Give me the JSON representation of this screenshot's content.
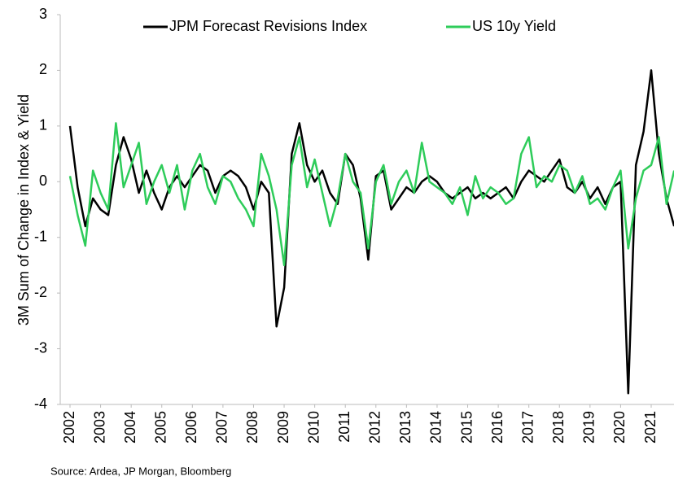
{
  "chart_data": {
    "type": "line",
    "ylabel": "3M Sum of Change in Index & Yield",
    "source": "Source: Ardea, JP Morgan, Bloomberg",
    "legend": "top",
    "x": [
      2002.0,
      2002.25,
      2002.5,
      2002.75,
      2003.0,
      2003.25,
      2003.5,
      2003.75,
      2004.0,
      2004.25,
      2004.5,
      2004.75,
      2005.0,
      2005.25,
      2005.5,
      2005.75,
      2006.0,
      2006.25,
      2006.5,
      2006.75,
      2007.0,
      2007.25,
      2007.5,
      2007.75,
      2008.0,
      2008.25,
      2008.5,
      2008.75,
      2009.0,
      2009.25,
      2009.5,
      2009.75,
      2010.0,
      2010.25,
      2010.5,
      2010.75,
      2011.0,
      2011.25,
      2011.5,
      2011.75,
      2012.0,
      2012.25,
      2012.5,
      2012.75,
      2013.0,
      2013.25,
      2013.5,
      2013.75,
      2014.0,
      2014.25,
      2014.5,
      2014.75,
      2015.0,
      2015.25,
      2015.5,
      2015.75,
      2016.0,
      2016.25,
      2016.5,
      2016.75,
      2017.0,
      2017.25,
      2017.5,
      2017.75,
      2018.0,
      2018.25,
      2018.5,
      2018.75,
      2019.0,
      2019.25,
      2019.5,
      2019.75,
      2020.0,
      2020.25,
      2020.5,
      2020.75,
      2021.0,
      2021.25,
      2021.5,
      2021.75
    ],
    "series": [
      {
        "name": "JPM Forecast Revisions Index",
        "color": "#000000",
        "values": [
          1.0,
          -0.1,
          -0.8,
          -0.3,
          -0.5,
          -0.6,
          0.3,
          0.8,
          0.4,
          -0.2,
          0.2,
          -0.2,
          -0.5,
          -0.1,
          0.1,
          -0.1,
          0.1,
          0.3,
          0.2,
          -0.2,
          0.1,
          0.2,
          0.1,
          -0.1,
          -0.5,
          0.0,
          -0.2,
          -2.6,
          -1.9,
          0.5,
          1.05,
          0.3,
          0.0,
          0.2,
          -0.2,
          -0.4,
          0.5,
          0.3,
          -0.3,
          -1.4,
          0.1,
          0.2,
          -0.5,
          -0.3,
          -0.1,
          -0.2,
          0.0,
          0.1,
          0.0,
          -0.2,
          -0.3,
          -0.2,
          -0.1,
          -0.3,
          -0.2,
          -0.3,
          -0.2,
          -0.1,
          -0.3,
          0.0,
          0.2,
          0.1,
          0.0,
          0.2,
          0.4,
          -0.1,
          -0.2,
          0.0,
          -0.3,
          -0.1,
          -0.4,
          -0.1,
          0.0,
          -3.8,
          0.3,
          0.9,
          2.0,
          0.5,
          -0.3,
          -0.8
        ]
      },
      {
        "name": "US 10y Yield",
        "color": "#2ecc5a",
        "values": [
          0.1,
          -0.6,
          -1.15,
          0.2,
          -0.2,
          -0.5,
          1.05,
          -0.1,
          0.3,
          0.7,
          -0.4,
          0.0,
          0.3,
          -0.2,
          0.3,
          -0.5,
          0.2,
          0.5,
          -0.1,
          -0.4,
          0.1,
          0.0,
          -0.3,
          -0.5,
          -0.8,
          0.5,
          0.1,
          -0.5,
          -1.5,
          0.3,
          0.8,
          -0.1,
          0.4,
          -0.2,
          -0.8,
          -0.3,
          0.5,
          0.0,
          -0.2,
          -1.2,
          0.0,
          0.3,
          -0.4,
          0.0,
          0.2,
          -0.2,
          0.7,
          0.0,
          -0.1,
          -0.2,
          -0.4,
          -0.1,
          -0.6,
          0.1,
          -0.3,
          -0.1,
          -0.2,
          -0.4,
          -0.3,
          0.5,
          0.8,
          -0.1,
          0.1,
          0.0,
          0.3,
          0.2,
          -0.2,
          0.1,
          -0.4,
          -0.3,
          -0.5,
          -0.1,
          0.2,
          -1.2,
          -0.3,
          0.2,
          0.3,
          0.8,
          -0.4,
          0.2
        ]
      }
    ],
    "xlim": [
      2002,
      2021.75
    ],
    "xticks": [
      2002,
      2003,
      2004,
      2005,
      2006,
      2007,
      2008,
      2009,
      2010,
      2011,
      2012,
      2013,
      2014,
      2015,
      2016,
      2017,
      2018,
      2019,
      2020,
      2021
    ],
    "ylim": [
      -4,
      3
    ],
    "yticks": [
      -4,
      -3,
      -2,
      -1,
      0,
      1,
      2,
      3
    ]
  }
}
